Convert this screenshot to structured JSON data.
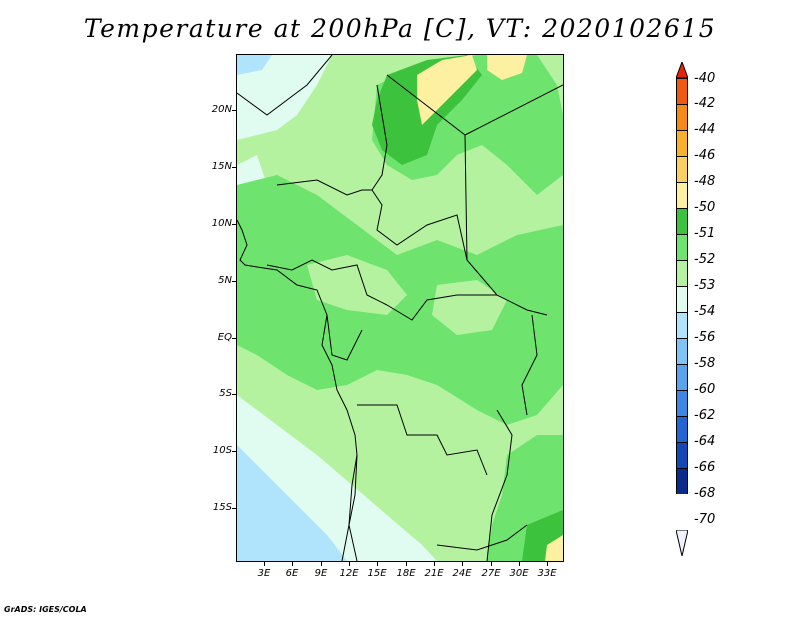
{
  "title": "Temperature at 200hPa [C], VT: 2020102615",
  "footer": "GrADS: IGES/COLA",
  "lat_labels": [
    "20N",
    "15N",
    "10N",
    "5N",
    "EQ",
    "5S",
    "10S",
    "15S"
  ],
  "lon_labels": [
    "3E",
    "6E",
    "9E",
    "12E",
    "15E",
    "18E",
    "21E",
    "24E",
    "27E",
    "30E",
    "33E"
  ],
  "legend": {
    "labels": [
      "-40",
      "-42",
      "-44",
      "-46",
      "-48",
      "-50",
      "-51",
      "-52",
      "-53",
      "-54",
      "-56",
      "-58",
      "-60",
      "-62",
      "-64",
      "-66",
      "-68",
      "-70"
    ],
    "colors": [
      "#e8200e",
      "#f05a10",
      "#f58a16",
      "#f9b02a",
      "#fcd060",
      "#fdf0a0",
      "#3cc23c",
      "#6ee46e",
      "#b4f2a0",
      "#e0fcf0",
      "#b0e4fc",
      "#7ec4f6",
      "#5aa4ee",
      "#3c86e4",
      "#2266d4",
      "#1448b4",
      "#0a2a8c",
      "#f0f0ff"
    ]
  }
}
